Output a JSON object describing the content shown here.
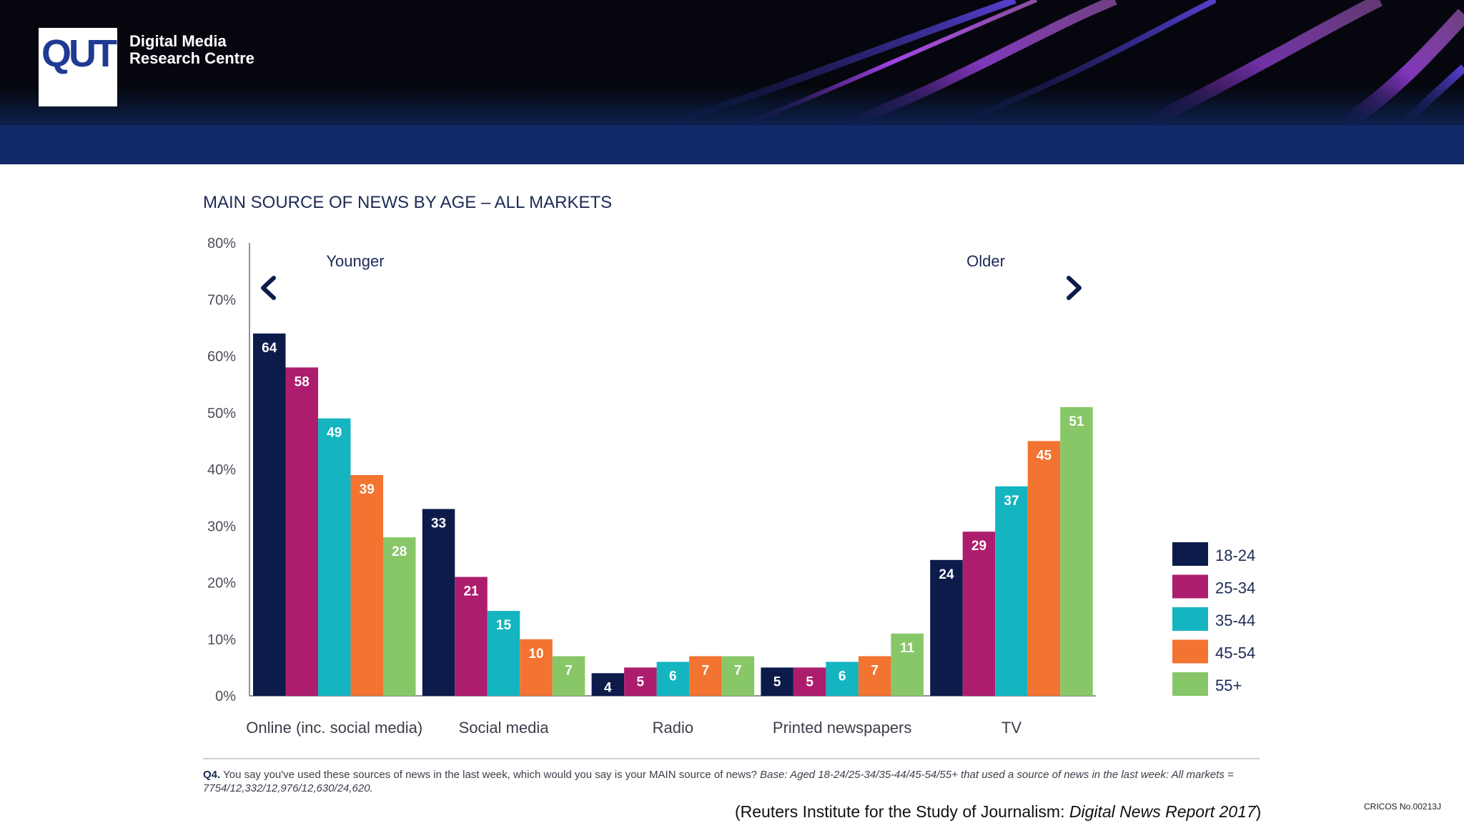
{
  "header": {
    "logo_text": "QUT",
    "org_line1": "Digital Media",
    "org_line2": "Research Centre",
    "colors": {
      "dark_band": "#06070e",
      "blue_strip": "#0f2a66",
      "logo_blue": "#1f3a93"
    }
  },
  "chart_data": {
    "type": "bar",
    "title": "MAIN SOURCE OF NEWS BY AGE – ALL MARKETS",
    "xlabel": "",
    "ylabel": "",
    "ylim": [
      0,
      80
    ],
    "y_ticks": [
      "0%",
      "10%",
      "20%",
      "30%",
      "40%",
      "50%",
      "60%",
      "70%",
      "80%"
    ],
    "y_tick_values": [
      0,
      10,
      20,
      30,
      40,
      50,
      60,
      70,
      80
    ],
    "categories": [
      "Online (inc. social media)",
      "Social media",
      "Radio",
      "Printed newspapers",
      "TV"
    ],
    "series": [
      {
        "name": "18-24",
        "color": "#0d1b4b",
        "values": [
          64,
          33,
          4,
          5,
          24
        ]
      },
      {
        "name": "25-34",
        "color": "#ad1d6e",
        "values": [
          58,
          21,
          5,
          5,
          29
        ]
      },
      {
        "name": "35-44",
        "color": "#14b5c0",
        "values": [
          49,
          15,
          6,
          6,
          37
        ]
      },
      {
        "name": "45-54",
        "color": "#f37330",
        "values": [
          39,
          10,
          7,
          7,
          45
        ]
      },
      {
        "name": "55+",
        "color": "#88c768",
        "values": [
          28,
          7,
          7,
          11,
          51
        ]
      }
    ],
    "legend_position": "right",
    "annotations": {
      "younger": "Younger",
      "older": "Older"
    }
  },
  "footnote": {
    "q_label": "Q4.",
    "question": "You say you've used these sources of news in the last week, which would you say is your MAIN source of news?",
    "base": "Base: Aged 18-24/25-34/35-44/45-54/55+ that used a source of news in the last week: All markets = 7754/12,332/12,976/12,630/24,620."
  },
  "source": {
    "prefix": "(Reuters Institute for the Study of Journalism: ",
    "title": "Digital News Report 2017",
    "suffix": ")"
  },
  "cricos": "CRICOS No.00213J"
}
